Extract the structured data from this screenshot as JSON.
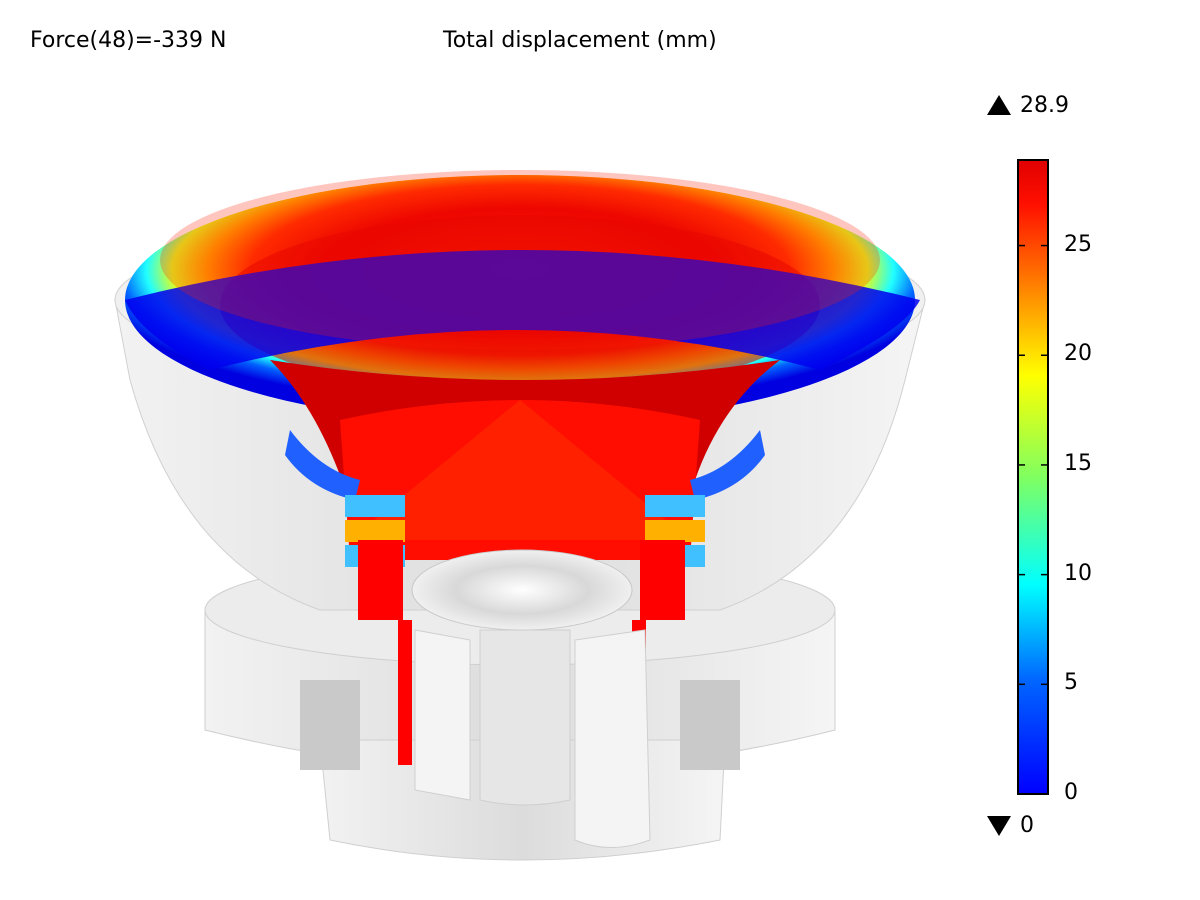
{
  "header": {
    "force_label": "Force(48)=-339 N",
    "plot_title": "Total displacement (mm)"
  },
  "colorbar": {
    "max_value": "28.9",
    "min_value": "0",
    "tick_labels": [
      "25",
      "20",
      "15",
      "10",
      "5",
      "0"
    ],
    "tick_values": [
      25,
      20,
      15,
      10,
      5,
      0
    ],
    "range": [
      0,
      28.9
    ],
    "colors": [
      "#0000ff",
      "#0070ff",
      "#00ffff",
      "#80ff80",
      "#ffff00",
      "#ff8000",
      "#ff0000",
      "#e00000"
    ]
  },
  "scene": {
    "description_colors": {
      "housing": "#e6e6e6",
      "high_displacement": "#ff0000",
      "low_displacement": "#0000ff"
    }
  }
}
